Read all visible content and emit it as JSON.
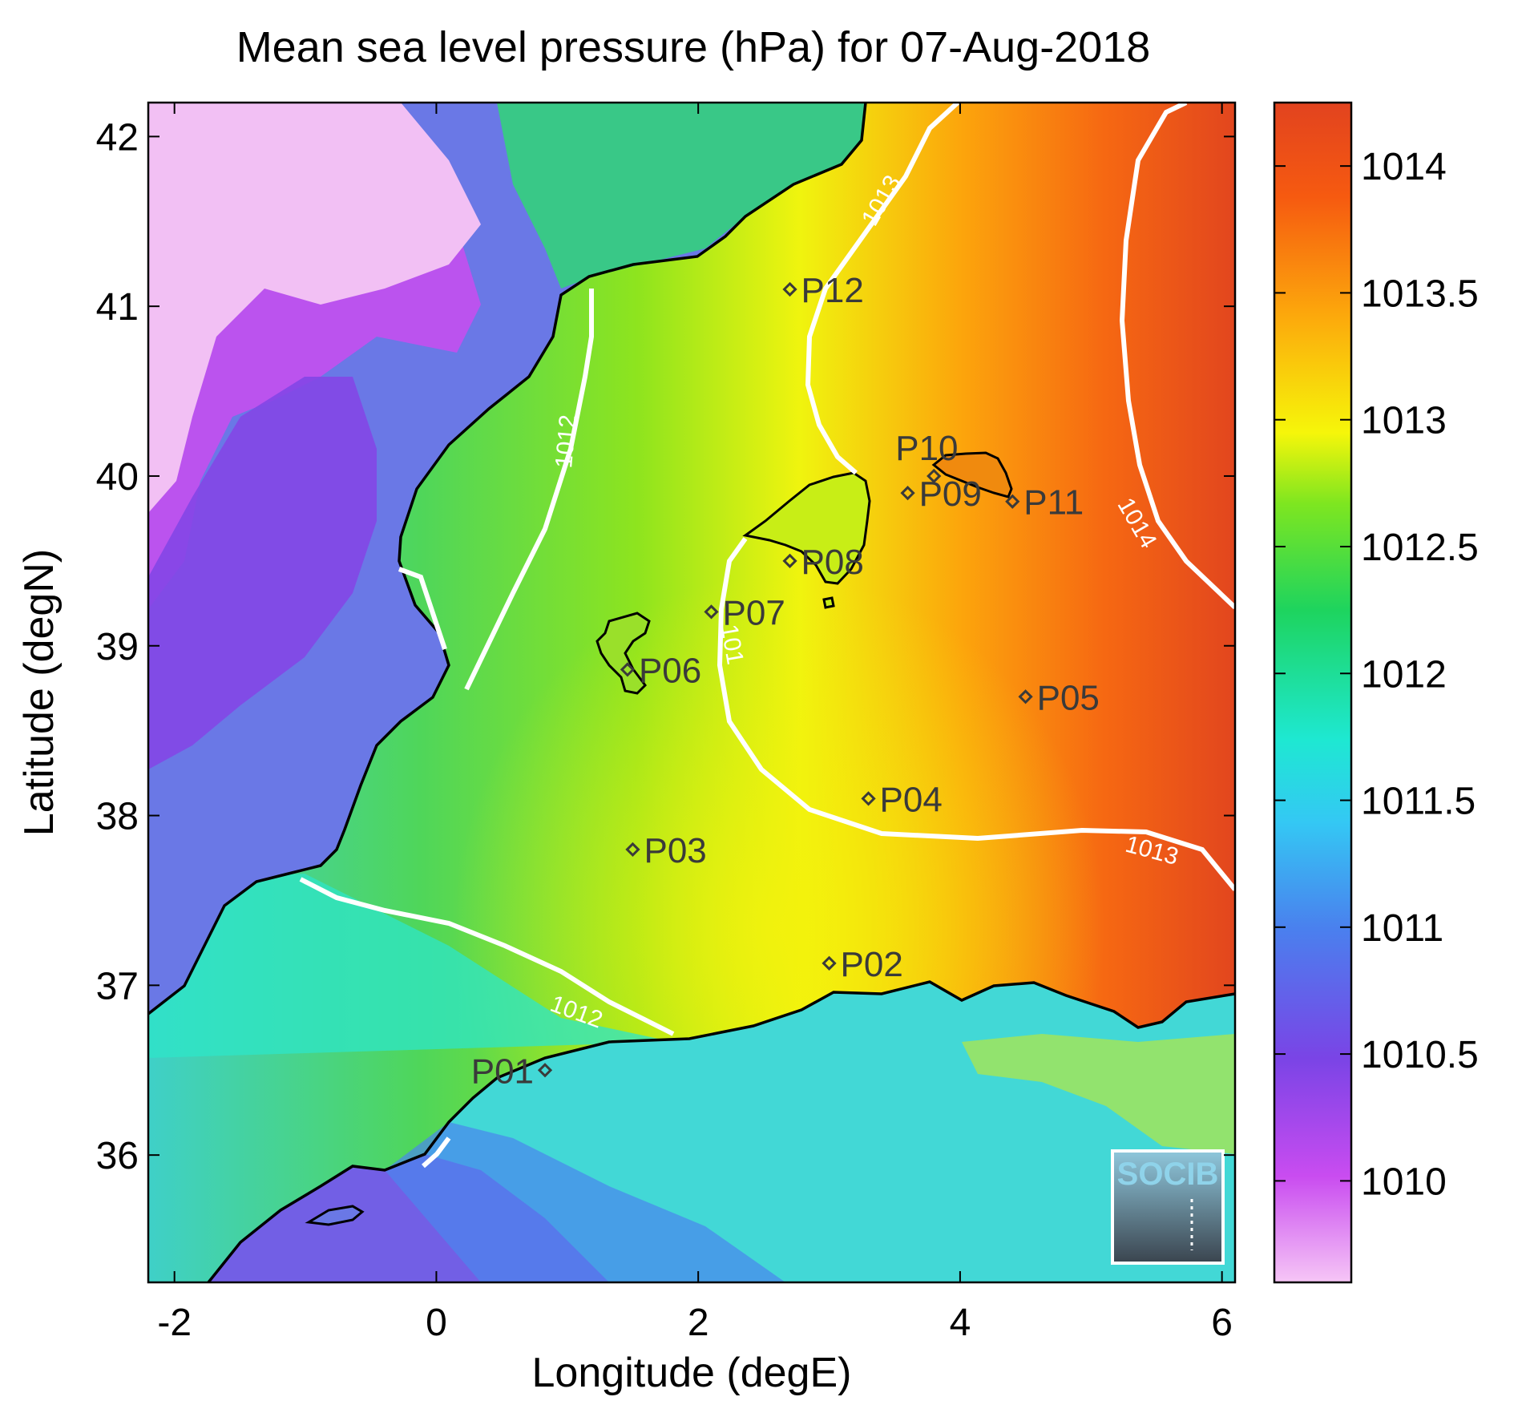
{
  "chart_data": {
    "type": "heatmap",
    "title": "Mean sea level pressure (hPa) for 07-Aug-2018",
    "xlabel": "Longitude (degE)",
    "ylabel": "Latitude (degN)",
    "xlim": [
      -2.2,
      6.1
    ],
    "ylim": [
      35.25,
      42.2
    ],
    "x_ticks": [
      -2,
      0,
      2,
      4,
      6
    ],
    "y_ticks": [
      36,
      37,
      38,
      39,
      40,
      41,
      42
    ],
    "colorbar": {
      "range": [
        1009.6,
        1014.25
      ],
      "ticks": [
        1010,
        1010.5,
        1011,
        1011.5,
        1012,
        1012.5,
        1013,
        1013.5,
        1014
      ],
      "colors": [
        "#f6c6f6",
        "#c94cf0",
        "#7a44e6",
        "#4a80ee",
        "#34c8f4",
        "#1ee8d2",
        "#1ed45e",
        "#7ee620",
        "#f6f60a",
        "#fca80c",
        "#f65a10",
        "#e2431f"
      ]
    },
    "stations": [
      {
        "name": "P01",
        "lon": 0.83,
        "lat": 36.5
      },
      {
        "name": "P02",
        "lon": 3.0,
        "lat": 37.13
      },
      {
        "name": "P03",
        "lon": 1.5,
        "lat": 37.8
      },
      {
        "name": "P04",
        "lon": 3.3,
        "lat": 38.1
      },
      {
        "name": "P05",
        "lon": 4.5,
        "lat": 38.7
      },
      {
        "name": "P06",
        "lon": 1.46,
        "lat": 38.86
      },
      {
        "name": "P07",
        "lon": 2.1,
        "lat": 39.2
      },
      {
        "name": "P08",
        "lon": 2.7,
        "lat": 39.5
      },
      {
        "name": "P09",
        "lon": 3.6,
        "lat": 39.9
      },
      {
        "name": "P10",
        "lon": 3.8,
        "lat": 40.0
      },
      {
        "name": "P11",
        "lon": 4.4,
        "lat": 39.85
      },
      {
        "name": "P12",
        "lon": 2.7,
        "lat": 41.1
      }
    ],
    "contour_labels": [
      {
        "text": "1012",
        "lon": 1.05,
        "lat": 40.2
      },
      {
        "text": "1013",
        "lon": 3.45,
        "lat": 41.6
      },
      {
        "text": "1014",
        "lon": 5.3,
        "lat": 39.7
      },
      {
        "text": "101",
        "lon": 2.2,
        "lat": 39.0
      },
      {
        "text": "1013",
        "lon": 5.45,
        "lat": 37.75
      },
      {
        "text": "1012",
        "lon": 1.05,
        "lat": 36.8
      }
    ],
    "logo": "SOCIB"
  }
}
